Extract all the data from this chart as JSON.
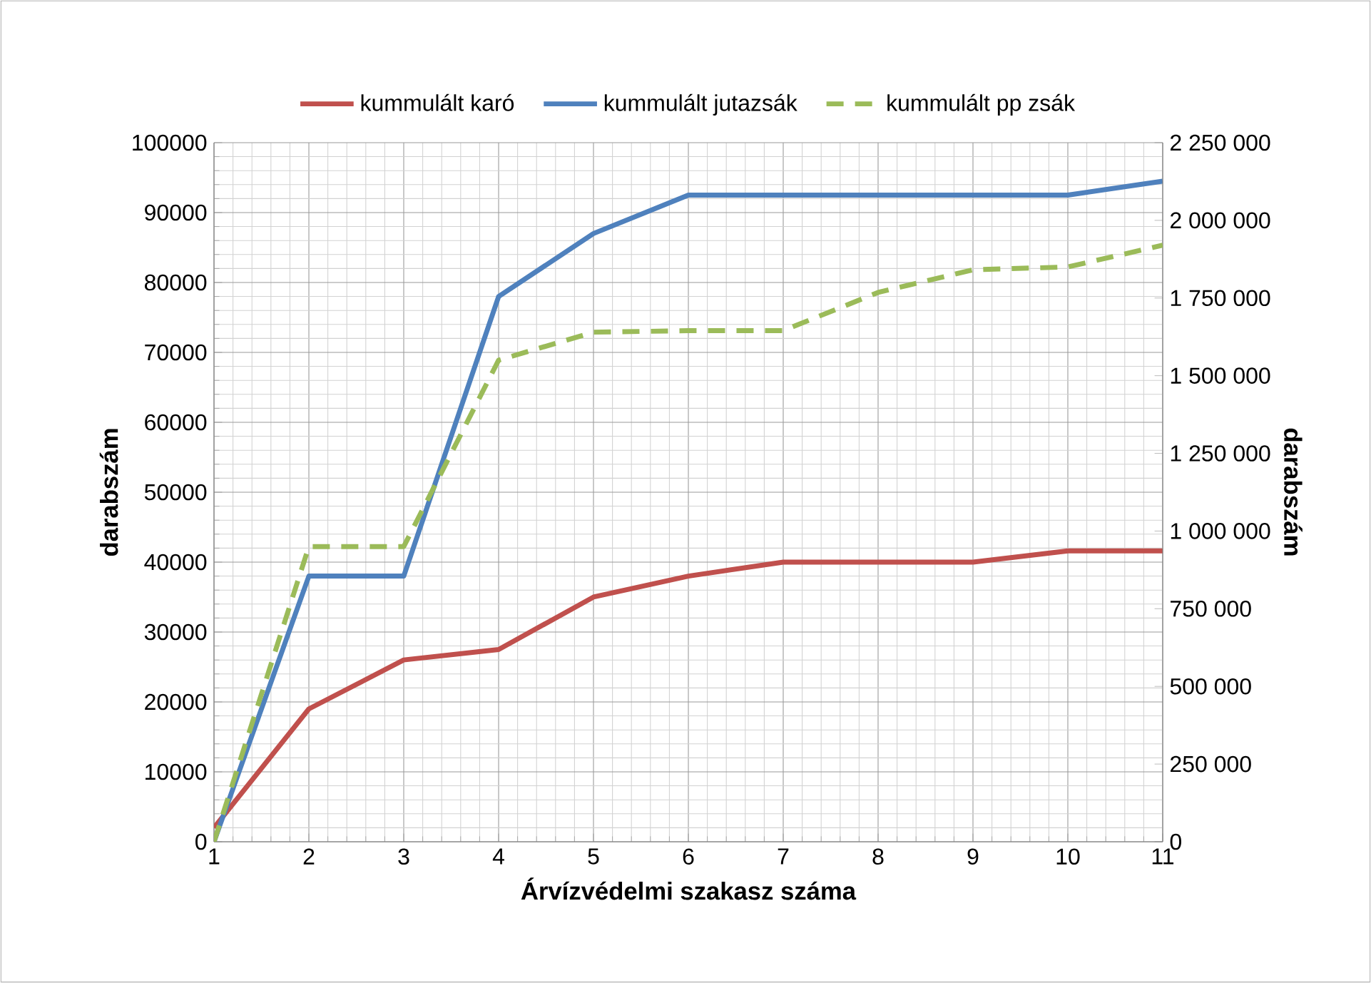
{
  "chart_data": {
    "type": "line",
    "xlabel": "Árvízvédelmi szakasz száma",
    "ylabel": "darabszám",
    "y2label": "darabszám",
    "x": [
      1,
      2,
      3,
      4,
      5,
      6,
      7,
      8,
      9,
      10,
      11
    ],
    "series": [
      {
        "name": "kummulált karó",
        "color": "#c0504d",
        "values": [
          2000,
          19000,
          26000,
          27500,
          35000,
          38000,
          40000,
          40000,
          40000,
          41600,
          41600
        ]
      },
      {
        "name": "kummulált  jutazsák",
        "color": "#4f81bd",
        "values": [
          0,
          38000,
          38000,
          78000,
          87000,
          92500,
          92500,
          92500,
          92500,
          92500,
          94500
        ]
      },
      {
        "name": "kummulált pp zsák",
        "color": "#9bbb59",
        "axis": "y2",
        "line_style": "dashed",
        "values": [
          0,
          950000,
          950000,
          1550000,
          1640000,
          1645000,
          1645000,
          1768000,
          1841000,
          1850000,
          1920000
        ]
      }
    ],
    "xlim": [
      1,
      11
    ],
    "xticks": [
      1,
      2,
      3,
      4,
      5,
      6,
      7,
      8,
      9,
      10,
      11
    ],
    "ylim": [
      0,
      100000
    ],
    "yticks": [
      0,
      10000,
      20000,
      30000,
      40000,
      50000,
      60000,
      70000,
      80000,
      90000,
      100000
    ],
    "y2lim": [
      0,
      2250000
    ],
    "y2ticks": [
      {
        "value": 0,
        "label": "0"
      },
      {
        "value": 250000,
        "label": "250 000"
      },
      {
        "value": 500000,
        "label": "500 000"
      },
      {
        "value": 750000,
        "label": "750 000"
      },
      {
        "value": 1000000,
        "label": "1 000 000"
      },
      {
        "value": 1250000,
        "label": "1 250 000"
      },
      {
        "value": 1500000,
        "label": "1 500 000"
      },
      {
        "value": 1750000,
        "label": "1 750 000"
      },
      {
        "value": 2000000,
        "label": "2 000 000"
      },
      {
        "value": 2250000,
        "label": "2 250 000"
      }
    ],
    "grid": true,
    "legend": "top",
    "marker": "none"
  }
}
